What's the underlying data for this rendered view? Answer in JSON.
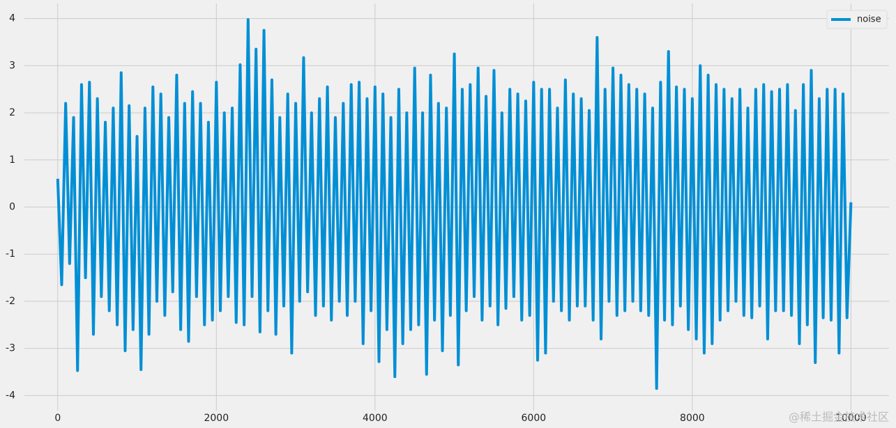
{
  "chart_data": {
    "type": "line",
    "x": [
      0,
      50,
      100,
      150,
      200,
      250,
      300,
      350,
      400,
      450,
      500,
      550,
      600,
      650,
      700,
      750,
      800,
      850,
      900,
      950,
      1000,
      1050,
      1100,
      1150,
      1200,
      1250,
      1300,
      1350,
      1400,
      1450,
      1500,
      1550,
      1600,
      1650,
      1700,
      1750,
      1800,
      1850,
      1900,
      1950,
      2000,
      2050,
      2100,
      2150,
      2200,
      2250,
      2300,
      2350,
      2400,
      2450,
      2500,
      2550,
      2600,
      2650,
      2700,
      2750,
      2800,
      2850,
      2900,
      2950,
      3000,
      3050,
      3100,
      3150,
      3200,
      3250,
      3300,
      3350,
      3400,
      3450,
      3500,
      3550,
      3600,
      3650,
      3700,
      3750,
      3800,
      3850,
      3900,
      3950,
      4000,
      4050,
      4100,
      4150,
      4200,
      4250,
      4300,
      4350,
      4400,
      4450,
      4500,
      4550,
      4600,
      4650,
      4700,
      4750,
      4800,
      4850,
      4900,
      4950,
      5000,
      5050,
      5100,
      5150,
      5200,
      5250,
      5300,
      5350,
      5400,
      5450,
      5500,
      5550,
      5600,
      5650,
      5700,
      5750,
      5800,
      5850,
      5900,
      5950,
      6000,
      6050,
      6100,
      6150,
      6200,
      6250,
      6300,
      6350,
      6400,
      6450,
      6500,
      6550,
      6600,
      6650,
      6700,
      6750,
      6800,
      6850,
      6900,
      6950,
      7000,
      7050,
      7100,
      7150,
      7200,
      7250,
      7300,
      7350,
      7400,
      7450,
      7500,
      7550,
      7600,
      7650,
      7700,
      7750,
      7800,
      7850,
      7900,
      7950,
      8000,
      8050,
      8100,
      8150,
      8200,
      8250,
      8300,
      8350,
      8400,
      8450,
      8500,
      8550,
      8600,
      8650,
      8700,
      8750,
      8800,
      8850,
      8900,
      8950,
      9000,
      9050,
      9100,
      9150,
      9200,
      9250,
      9300,
      9350,
      9400,
      9450,
      9500,
      9550,
      9600,
      9650,
      9700,
      9750,
      9800,
      9850,
      9900,
      9950,
      10000
    ],
    "series": [
      {
        "name": "noise",
        "color": "#008fd5",
        "values": [
          0.6,
          -1.65,
          2.2,
          -1.2,
          1.9,
          -3.47,
          2.6,
          -1.5,
          2.65,
          -2.7,
          2.3,
          -1.9,
          1.8,
          -2.2,
          2.1,
          -2.5,
          2.85,
          -3.05,
          2.15,
          -2.6,
          1.5,
          -3.45,
          2.1,
          -2.7,
          2.55,
          -2.0,
          2.4,
          -2.3,
          1.9,
          -1.8,
          2.8,
          -2.6,
          2.2,
          -2.85,
          2.45,
          -1.9,
          2.2,
          -2.5,
          1.8,
          -2.4,
          2.65,
          -2.2,
          2.0,
          -1.9,
          2.1,
          -2.45,
          3.02,
          -2.5,
          3.98,
          -1.9,
          3.35,
          -2.65,
          3.75,
          -2.2,
          2.7,
          -2.7,
          1.9,
          -2.1,
          2.4,
          -3.1,
          2.2,
          -2.0,
          3.17,
          -1.8,
          2.0,
          -2.3,
          2.3,
          -2.1,
          2.55,
          -2.4,
          1.9,
          -2.0,
          2.2,
          -2.3,
          2.6,
          -2.0,
          2.65,
          -2.9,
          2.3,
          -2.2,
          2.55,
          -3.28,
          2.4,
          -2.6,
          1.9,
          -3.6,
          2.5,
          -2.9,
          2.0,
          -2.6,
          2.95,
          -2.5,
          2.0,
          -3.55,
          2.8,
          -2.4,
          2.2,
          -3.05,
          2.1,
          -2.3,
          3.25,
          -3.35,
          2.5,
          -2.2,
          2.6,
          -1.9,
          2.95,
          -2.4,
          2.35,
          -2.1,
          2.9,
          -2.5,
          2.0,
          -2.15,
          2.5,
          -1.9,
          2.4,
          -2.4,
          2.25,
          -2.3,
          2.65,
          -3.25,
          2.5,
          -3.1,
          2.5,
          -2.0,
          2.1,
          -2.2,
          2.7,
          -2.4,
          2.4,
          -2.1,
          2.3,
          -2.1,
          2.05,
          -2.4,
          3.6,
          -2.8,
          2.5,
          -2.0,
          2.95,
          -2.3,
          2.8,
          -2.2,
          2.6,
          -2.0,
          2.5,
          -2.2,
          2.4,
          -2.3,
          2.1,
          -3.85,
          2.65,
          -2.4,
          3.3,
          -2.5,
          2.55,
          -2.1,
          2.5,
          -2.6,
          2.3,
          -2.8,
          3.0,
          -3.1,
          2.8,
          -2.9,
          2.6,
          -2.4,
          2.5,
          -2.2,
          2.3,
          -2.0,
          2.5,
          -2.3,
          2.1,
          -2.35,
          2.5,
          -2.1,
          2.6,
          -2.8,
          2.45,
          -2.2,
          2.5,
          -2.2,
          2.6,
          -2.3,
          2.05,
          -2.9,
          2.6,
          -2.5,
          2.9,
          -3.3,
          2.3,
          -2.35,
          2.5,
          -2.4,
          2.5,
          -3.1,
          2.4,
          -2.35,
          0.1
        ]
      }
    ],
    "xlim": [
      -420,
      10480
    ],
    "ylim": [
      -4.32,
      4.32
    ],
    "xticks": [
      0,
      2000,
      4000,
      6000,
      8000,
      10000
    ],
    "yticks": [
      -4,
      -3,
      -2,
      -1,
      0,
      1,
      2,
      3,
      4
    ],
    "grid": true,
    "legend": "upper right",
    "watermark": "@稀土掘金技术社区"
  }
}
